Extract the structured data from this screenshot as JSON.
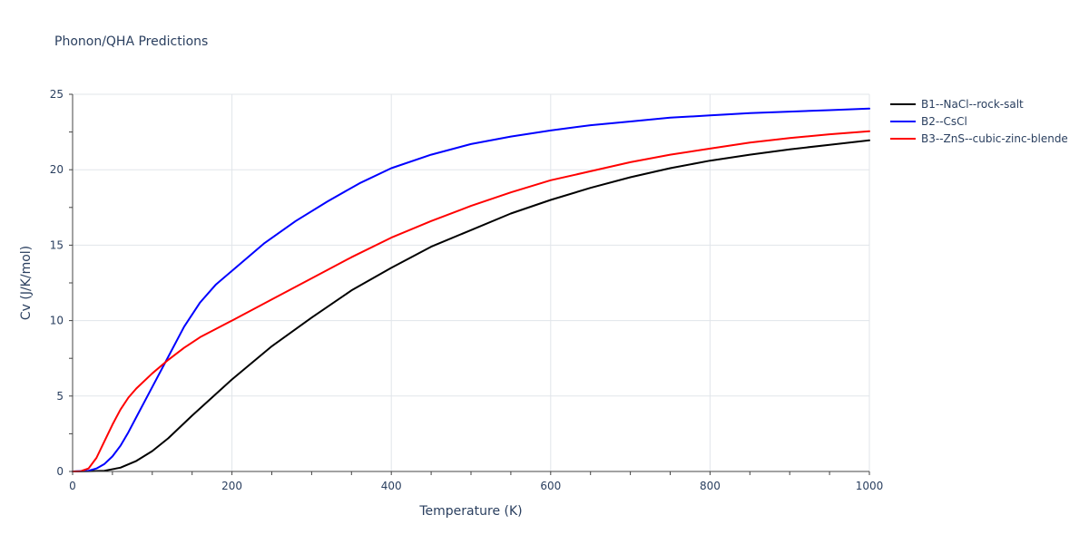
{
  "chart_data": {
    "type": "line",
    "title": "Phonon/QHA Predictions",
    "xlabel": "Temperature (K)",
    "ylabel": "Cv (J/K/mol)",
    "xlim": [
      0,
      1000
    ],
    "ylim": [
      0,
      25
    ],
    "x_ticks": [
      0,
      200,
      400,
      600,
      800,
      1000
    ],
    "y_ticks": [
      0,
      5,
      10,
      15,
      20,
      25
    ],
    "grid": true,
    "legend_position": "top-right, outside plot",
    "series": [
      {
        "name": "B1--NaCl--rock-salt",
        "color": "#000000",
        "x": [
          0,
          20,
          40,
          60,
          80,
          100,
          120,
          150,
          200,
          250,
          300,
          350,
          400,
          450,
          500,
          550,
          600,
          650,
          700,
          750,
          800,
          850,
          900,
          950,
          1000
        ],
        "y": [
          0,
          0.01,
          0.05,
          0.25,
          0.7,
          1.35,
          2.2,
          3.7,
          6.1,
          8.3,
          10.2,
          12.0,
          13.5,
          14.9,
          16.0,
          17.1,
          18.0,
          18.8,
          19.5,
          20.1,
          20.6,
          21.0,
          21.35,
          21.65,
          21.95
        ]
      },
      {
        "name": "B2--CsCl",
        "color": "#0000ff",
        "x": [
          0,
          20,
          30,
          40,
          50,
          60,
          70,
          80,
          100,
          120,
          140,
          160,
          180,
          200,
          240,
          280,
          320,
          360,
          400,
          450,
          500,
          550,
          600,
          650,
          700,
          750,
          800,
          850,
          900,
          950,
          1000
        ],
        "y": [
          0,
          0.05,
          0.2,
          0.5,
          1.0,
          1.7,
          2.6,
          3.6,
          5.6,
          7.6,
          9.6,
          11.2,
          12.4,
          13.3,
          15.1,
          16.6,
          17.9,
          19.1,
          20.1,
          21.0,
          21.7,
          22.2,
          22.6,
          22.95,
          23.2,
          23.45,
          23.6,
          23.75,
          23.85,
          23.95,
          24.05
        ]
      },
      {
        "name": "B3--ZnS--cubic-zinc-blende",
        "color": "#ff0000",
        "x": [
          0,
          10,
          20,
          30,
          40,
          50,
          60,
          70,
          80,
          100,
          120,
          140,
          160,
          200,
          250,
          300,
          350,
          400,
          450,
          500,
          550,
          600,
          650,
          700,
          750,
          800,
          850,
          900,
          950,
          1000
        ],
        "y": [
          0,
          0.02,
          0.2,
          0.9,
          2.0,
          3.1,
          4.1,
          4.9,
          5.5,
          6.5,
          7.4,
          8.2,
          8.9,
          10.0,
          11.4,
          12.8,
          14.2,
          15.5,
          16.6,
          17.6,
          18.5,
          19.3,
          19.9,
          20.5,
          21.0,
          21.4,
          21.8,
          22.1,
          22.35,
          22.55
        ]
      }
    ]
  }
}
